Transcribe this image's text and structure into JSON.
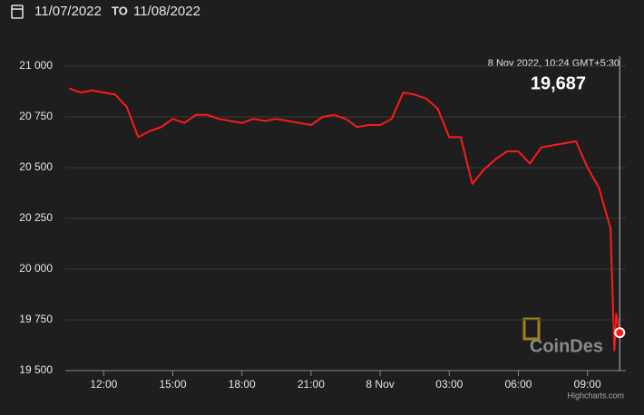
{
  "header": {
    "from": "11/07/2022",
    "separator": "TO",
    "to": "11/08/2022"
  },
  "chart_data": {
    "type": "line",
    "x": [
      "2022-11-07T10:30",
      "2022-11-07T11:00",
      "2022-11-07T11:30",
      "2022-11-07T12:00",
      "2022-11-07T12:30",
      "2022-11-07T13:00",
      "2022-11-07T13:30",
      "2022-11-07T14:00",
      "2022-11-07T14:30",
      "2022-11-07T15:00",
      "2022-11-07T15:30",
      "2022-11-07T16:00",
      "2022-11-07T16:30",
      "2022-11-07T17:00",
      "2022-11-07T17:30",
      "2022-11-07T18:00",
      "2022-11-07T18:30",
      "2022-11-07T19:00",
      "2022-11-07T19:30",
      "2022-11-07T20:00",
      "2022-11-07T20:30",
      "2022-11-07T21:00",
      "2022-11-07T21:30",
      "2022-11-07T22:00",
      "2022-11-07T22:30",
      "2022-11-07T23:00",
      "2022-11-07T23:30",
      "2022-11-08T00:00",
      "2022-11-08T00:30",
      "2022-11-08T01:00",
      "2022-11-08T01:30",
      "2022-11-08T02:00",
      "2022-11-08T02:30",
      "2022-11-08T03:00",
      "2022-11-08T03:30",
      "2022-11-08T04:00",
      "2022-11-08T04:30",
      "2022-11-08T05:00",
      "2022-11-08T05:30",
      "2022-11-08T06:00",
      "2022-11-08T06:30",
      "2022-11-08T07:00",
      "2022-11-08T07:30",
      "2022-11-08T08:00",
      "2022-11-08T08:30",
      "2022-11-08T09:00",
      "2022-11-08T09:30",
      "2022-11-08T10:00",
      "2022-11-08T10:10",
      "2022-11-08T10:15",
      "2022-11-08T10:24"
    ],
    "series": [
      {
        "color": "#ff1a1a",
        "values": [
          20890,
          20870,
          20880,
          20870,
          20860,
          20800,
          20650,
          20680,
          20700,
          20740,
          20720,
          20760,
          20760,
          20740,
          20730,
          20720,
          20740,
          20730,
          20740,
          20730,
          20720,
          20710,
          20750,
          20760,
          20740,
          20700,
          20710,
          20710,
          20740,
          20870,
          20860,
          20840,
          20790,
          20650,
          20650,
          20420,
          20490,
          20540,
          20580,
          20580,
          20520,
          20600,
          20610,
          20620,
          20630,
          20500,
          20400,
          20200,
          19600,
          19780,
          19687
        ]
      }
    ],
    "xlim": [
      "2022-11-07T10:20",
      "2022-11-08T10:40"
    ],
    "xticks": [
      {
        "value": "2022-11-07T12:00",
        "label": "12:00"
      },
      {
        "value": "2022-11-07T15:00",
        "label": "15:00"
      },
      {
        "value": "2022-11-07T18:00",
        "label": "18:00"
      },
      {
        "value": "2022-11-07T21:00",
        "label": "21:00"
      },
      {
        "value": "2022-11-08T00:00",
        "label": "8 Nov"
      },
      {
        "value": "2022-11-08T03:00",
        "label": "03:00"
      },
      {
        "value": "2022-11-08T06:00",
        "label": "06:00"
      },
      {
        "value": "2022-11-08T09:00",
        "label": "09:00"
      }
    ],
    "ylim": [
      19500,
      21000
    ],
    "yticks": [
      {
        "value": 19500,
        "label": "19 500"
      },
      {
        "value": 19750,
        "label": "19 750"
      },
      {
        "value": 20000,
        "label": "20 000"
      },
      {
        "value": 20250,
        "label": "20 250"
      },
      {
        "value": 20500,
        "label": "20 500"
      },
      {
        "value": 20750,
        "label": "20 750"
      },
      {
        "value": 21000,
        "label": "21 000"
      }
    ],
    "grid": true,
    "tooltip": {
      "header": "8 Nov 2022, 10:24 GMT+5:30",
      "value": 19687,
      "value_label": "19,687"
    },
    "watermark": "CoinDes",
    "credits": "Highcharts.com"
  }
}
